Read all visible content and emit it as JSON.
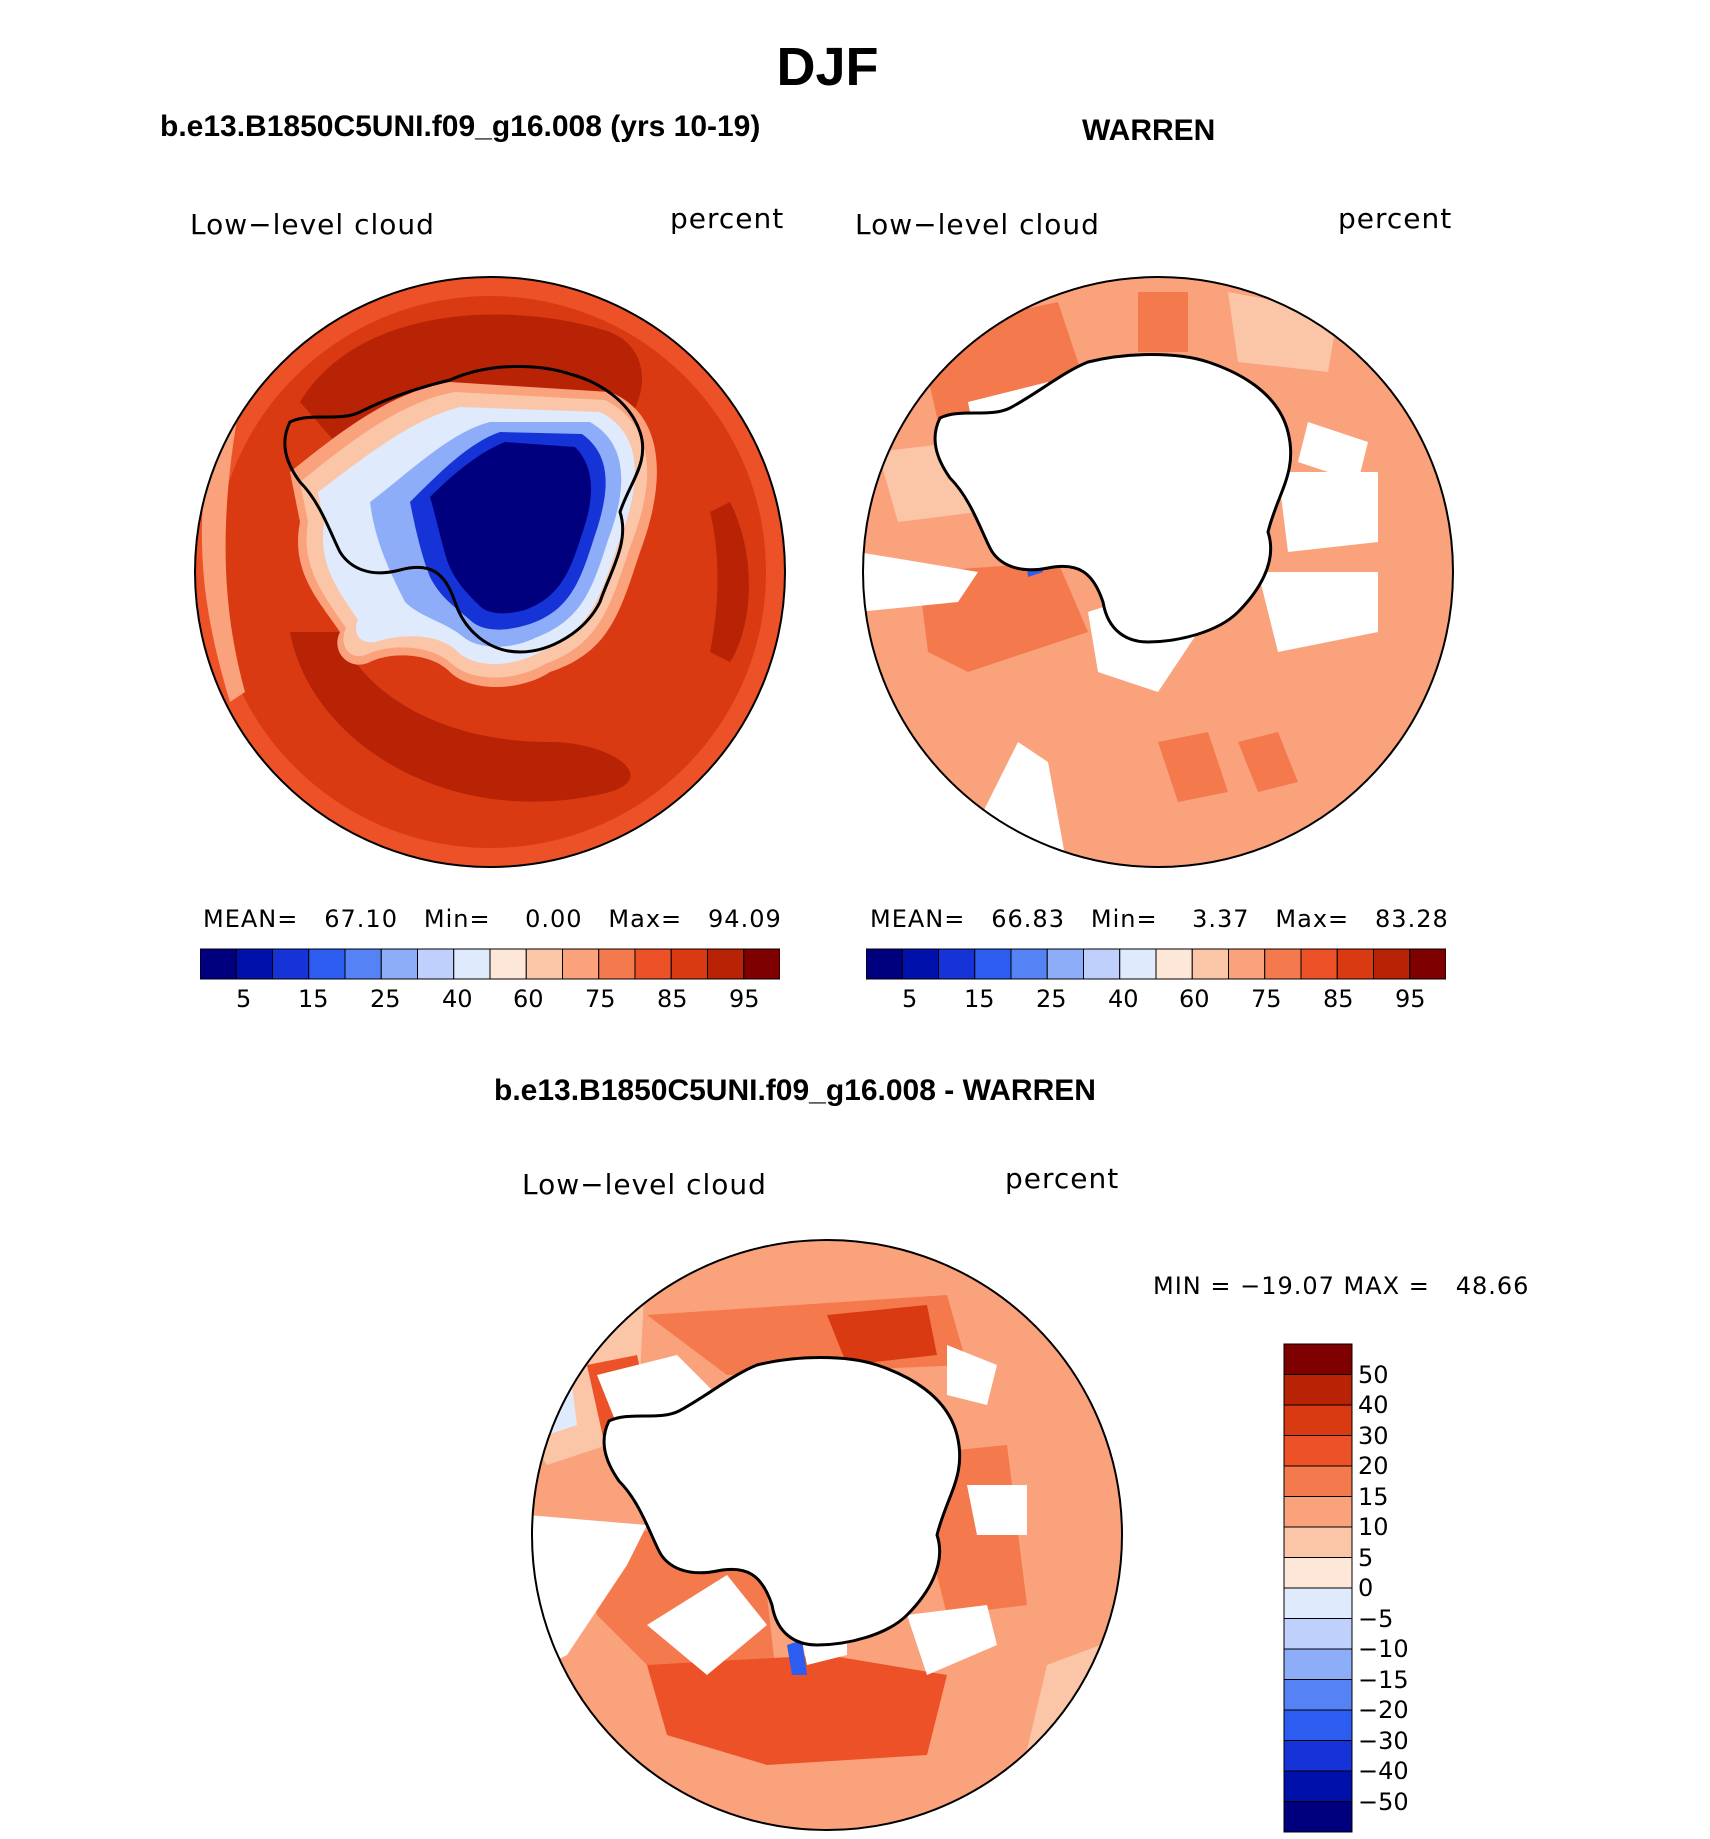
{
  "figure": {
    "season": "DJF",
    "panels": [
      {
        "case_title": "b.e13.B1850C5UNI.f09_g16.008 (yrs 10-19)",
        "variable": "Low−level cloud",
        "units": "percent",
        "stats": {
          "mean_label": "MEAN=",
          "mean": "67.10",
          "min_label": "Min=",
          "min": "0.00",
          "max_label": "Max=",
          "max": "94.09"
        }
      },
      {
        "case_title": "WARREN",
        "variable": "Low−level cloud",
        "units": "percent",
        "stats": {
          "mean_label": "MEAN=",
          "mean": "66.83",
          "min_label": "Min=",
          "min": "3.37",
          "max_label": "Max=",
          "max": "83.28"
        }
      },
      {
        "case_title": "b.e13.B1850C5UNI.f09_g16.008 - WARREN",
        "variable": "Low−level cloud",
        "units": "percent",
        "minmax_text": "MIN = −19.07 MAX =   48.66"
      }
    ],
    "abs_colorbar": {
      "colors": [
        "#00007f",
        "#0010aa",
        "#1533d6",
        "#2d5cf0",
        "#5582f5",
        "#8eadf8",
        "#bed0fb",
        "#dfeafc",
        "#fde7d8",
        "#fbc6a8",
        "#f9a27c",
        "#f47a4e",
        "#ec5128",
        "#d93a12",
        "#b82306",
        "#7f0000"
      ],
      "tick_labels": [
        "5",
        "15",
        "25",
        "40",
        "60",
        "75",
        "85",
        "95"
      ]
    },
    "diff_colorbar": {
      "colors": [
        "#7f0000",
        "#b82306",
        "#d93a12",
        "#ec5128",
        "#f47a4e",
        "#f9a27c",
        "#fbc6a8",
        "#fde7d8",
        "#dfeafc",
        "#bed0fb",
        "#8eadf8",
        "#5582f5",
        "#2d5cf0",
        "#1533d6",
        "#0010aa",
        "#00007f"
      ],
      "tick_labels": [
        "50",
        "40",
        "30",
        "20",
        "15",
        "10",
        "5",
        "0",
        "−5",
        "−10",
        "−15",
        "−20",
        "−30",
        "−40",
        "−50"
      ]
    }
  }
}
